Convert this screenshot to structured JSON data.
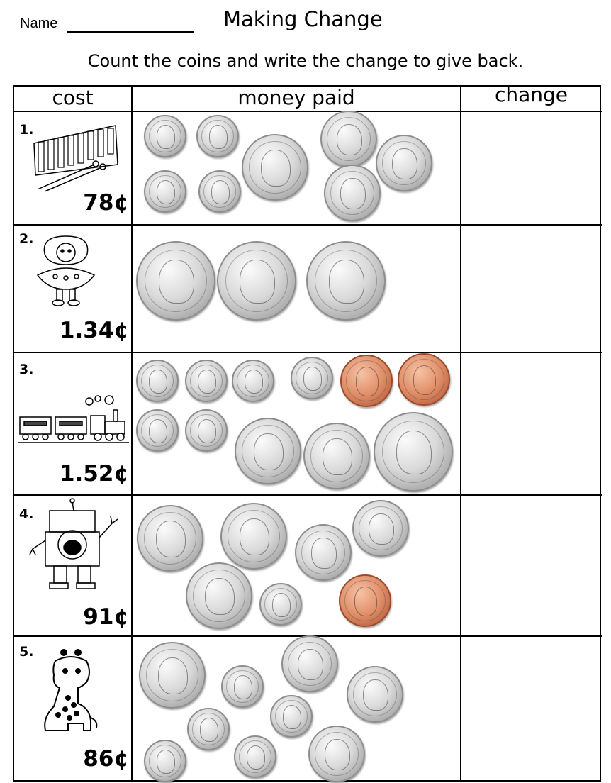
{
  "header": {
    "name_label": "Name",
    "title": "Making Change",
    "instructions": "Count the coins and write the change to give back."
  },
  "table": {
    "columns": [
      "cost",
      "money paid",
      "change"
    ],
    "rows": [
      {
        "number": "1.",
        "item": "xylophone",
        "price": "78¢",
        "coins": [
          "dime",
          "dime",
          "dime",
          "dime",
          "quarter",
          "nickel",
          "nickel",
          "nickel"
        ],
        "change": ""
      },
      {
        "number": "2.",
        "item": "doll",
        "price": "1.34¢",
        "coins": [
          "half-dollar",
          "half-dollar",
          "half-dollar"
        ],
        "change": ""
      },
      {
        "number": "3.",
        "item": "train",
        "price": "1.52¢",
        "coins": [
          "dime",
          "dime",
          "dime",
          "dime",
          "penny",
          "penny",
          "dime",
          "dime",
          "quarter",
          "quarter",
          "half-dollar"
        ],
        "change": ""
      },
      {
        "number": "4.",
        "item": "robot",
        "price": "91¢",
        "coins": [
          "quarter",
          "quarter",
          "quarter",
          "nickel",
          "nickel",
          "dime",
          "penny"
        ],
        "change": ""
      },
      {
        "number": "5.",
        "item": "giraffe",
        "price": "86¢",
        "coins": [
          "quarter",
          "dime",
          "dime",
          "dime",
          "dime",
          "dime",
          "nickel",
          "nickel",
          "nickel"
        ],
        "change": ""
      }
    ]
  },
  "colors": {
    "silver": "#c8c8c8",
    "copper": "#d9825c"
  }
}
